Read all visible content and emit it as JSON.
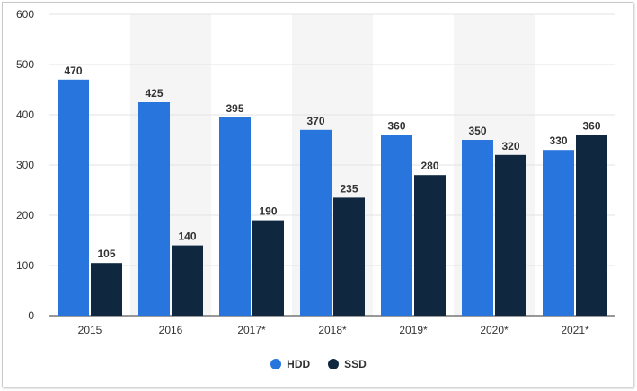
{
  "chart_data": {
    "type": "bar",
    "categories": [
      "2015",
      "2016",
      "2017*",
      "2018*",
      "2019*",
      "2020*",
      "2021*"
    ],
    "series": [
      {
        "name": "HDD",
        "values": [
          470,
          425,
          395,
          370,
          360,
          350,
          330
        ],
        "color": "#2876dd"
      },
      {
        "name": "SSD",
        "values": [
          105,
          140,
          190,
          235,
          280,
          320,
          360
        ],
        "color": "#0f2840"
      }
    ],
    "ylim": [
      0,
      600
    ],
    "yticks": [
      0,
      100,
      200,
      300,
      400,
      500,
      600
    ],
    "grid": true,
    "legend_position": "bottom-center",
    "colors": {
      "band": "#f5f5f5",
      "grid": "#e3e3e3",
      "label": "#333333",
      "axis": "#333333"
    }
  }
}
